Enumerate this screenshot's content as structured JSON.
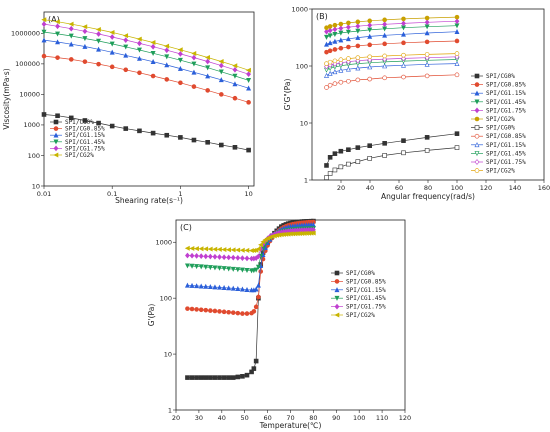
{
  "chart_data": [
    {
      "type": "scatter",
      "panel_label": "(A)",
      "xlabel": "Shearing rate(s⁻¹)",
      "ylabel": "Viscosity(mPa·s)",
      "xscale": "log",
      "yscale": "log",
      "xlim": [
        0.01,
        12
      ],
      "ylim": [
        10,
        5000000
      ],
      "xticks": [
        "0.01",
        "0.1",
        "1",
        "10"
      ],
      "yticks": [
        "10",
        "100",
        "1000",
        "10000",
        "100000",
        "1000000"
      ],
      "legend_loc": "bottom-left",
      "x": [
        0.01,
        0.0158,
        0.0251,
        0.0398,
        0.0631,
        0.1,
        0.158,
        0.251,
        0.398,
        0.631,
        1,
        1.58,
        2.51,
        3.98,
        6.31,
        10
      ],
      "series": [
        {
          "name": "SPI/CG0%",
          "marker": "square",
          "color": "#333333",
          "values": [
            2200,
            2000,
            1700,
            1400,
            1150,
            920,
            760,
            640,
            540,
            460,
            390,
            320,
            270,
            220,
            185,
            150
          ]
        },
        {
          "name": "SPI/CG0.85%",
          "marker": "circle",
          "color": "#e04a2f",
          "values": [
            180000,
            160000,
            140000,
            118000,
            98000,
            80000,
            64000,
            51000,
            40000,
            31000,
            24000,
            18000,
            13500,
            10000,
            7500,
            5500
          ]
        },
        {
          "name": "SPI/CG1.15%",
          "marker": "triangle-up",
          "color": "#2b5fd9",
          "values": [
            600000,
            520000,
            440000,
            370000,
            300000,
            240000,
            190000,
            150000,
            118000,
            92000,
            70000,
            53000,
            40000,
            30000,
            22000,
            16000
          ]
        },
        {
          "name": "SPI/CG1.45%",
          "marker": "triangle-down",
          "color": "#1f9e5a",
          "values": [
            1100000,
            960000,
            820000,
            680000,
            560000,
            450000,
            360000,
            285000,
            222000,
            172000,
            132000,
            100000,
            75000,
            55000,
            40000,
            29000
          ]
        },
        {
          "name": "SPI/CG1.75%",
          "marker": "diamond",
          "color": "#c040d0",
          "values": [
            2000000,
            1700000,
            1420000,
            1170000,
            950000,
            760000,
            600000,
            470000,
            365000,
            280000,
            212000,
            160000,
            120000,
            88000,
            64000,
            46000
          ]
        },
        {
          "name": "SPI/CG2%",
          "marker": "triangle-left",
          "color": "#c8b400",
          "values": [
            2800000,
            2400000,
            2000000,
            1650000,
            1340000,
            1070000,
            840000,
            650000,
            500000,
            382000,
            290000,
            218000,
            162000,
            120000,
            87000,
            62000
          ]
        }
      ]
    },
    {
      "type": "scatter",
      "panel_label": "(B)",
      "xlabel": "Angular frequency(rad/s)",
      "ylabel": "G'G\"(Pa)",
      "xscale": "linear",
      "yscale": "log",
      "xlim": [
        0,
        160
      ],
      "ylim": [
        1,
        1000
      ],
      "xticks": [
        "20",
        "40",
        "60",
        "80",
        "100",
        "120",
        "140",
        "160"
      ],
      "yticks": [
        "1",
        "10",
        "100",
        "1000"
      ],
      "legend_loc": "right",
      "x": [
        10,
        12.5,
        15.8,
        19.9,
        25.1,
        31.6,
        39.8,
        50.1,
        63.1,
        79.4,
        100
      ],
      "series": [
        {
          "name": "SPI/CG0%",
          "marker": "square",
          "filled": true,
          "color": "#333333",
          "values": [
            1.8,
            2.5,
            2.9,
            3.2,
            3.4,
            3.7,
            4.0,
            4.4,
            4.9,
            5.6,
            6.5
          ]
        },
        {
          "name": "SPI/CG0.85%",
          "marker": "circle",
          "filled": true,
          "color": "#e04a2f",
          "values": [
            175,
            185,
            195,
            205,
            215,
            225,
            235,
            245,
            255,
            265,
            275
          ]
        },
        {
          "name": "SPI/CG1.15%",
          "marker": "triangle-up",
          "filled": true,
          "color": "#2b5fd9",
          "values": [
            240,
            255,
            270,
            285,
            300,
            315,
            330,
            345,
            360,
            380,
            400
          ]
        },
        {
          "name": "SPI/CG1.45%",
          "marker": "triangle-down",
          "filled": true,
          "color": "#1f9e5a",
          "values": [
            320,
            340,
            360,
            380,
            395,
            410,
            430,
            450,
            470,
            490,
            510
          ]
        },
        {
          "name": "SPI/CG1.75%",
          "marker": "diamond",
          "filled": true,
          "color": "#c040d0",
          "values": [
            400,
            420,
            440,
            460,
            480,
            500,
            520,
            540,
            560,
            585,
            610
          ]
        },
        {
          "name": "SPI/CG2%",
          "marker": "circle",
          "filled": true,
          "color": "#c8a000",
          "values": [
            470,
            495,
            520,
            545,
            570,
            595,
            620,
            645,
            670,
            695,
            720
          ]
        },
        {
          "name": "SPI/CG0%",
          "marker": "square",
          "filled": false,
          "color": "#333333",
          "values": [
            1.1,
            1.3,
            1.5,
            1.7,
            1.9,
            2.1,
            2.4,
            2.7,
            3.0,
            3.3,
            3.7
          ]
        },
        {
          "name": "SPI/CG0.85%",
          "marker": "circle",
          "filled": false,
          "color": "#e04a2f",
          "values": [
            42,
            46,
            49,
            52,
            54,
            57,
            59,
            62,
            64,
            67,
            70
          ]
        },
        {
          "name": "SPI/CG1.15%",
          "marker": "triangle-up",
          "filled": false,
          "color": "#2b5fd9",
          "values": [
            68,
            74,
            79,
            84,
            88,
            92,
            96,
            100,
            103,
            107,
            110
          ]
        },
        {
          "name": "SPI/CG1.45%",
          "marker": "triangle-down",
          "filled": false,
          "color": "#1f9e5a",
          "values": [
            85,
            91,
            96,
            101,
            106,
            110,
            114,
            118,
            122,
            126,
            130
          ]
        },
        {
          "name": "SPI/CG1.75%",
          "marker": "diamond",
          "filled": false,
          "color": "#c040d0",
          "values": [
            98,
            104,
            109,
            114,
            119,
            124,
            128,
            132,
            136,
            140,
            145
          ]
        },
        {
          "name": "SPI/CG2%",
          "marker": "circle",
          "filled": false,
          "color": "#e0a000",
          "values": [
            110,
            117,
            123,
            129,
            135,
            140,
            145,
            150,
            155,
            160,
            165
          ]
        }
      ]
    },
    {
      "type": "line",
      "panel_label": "(C)",
      "xlabel": "Temperature(℃)",
      "ylabel": "G'(Pa)",
      "xscale": "linear",
      "yscale": "log",
      "xlim": [
        20,
        120
      ],
      "ylim": [
        1,
        2500
      ],
      "xticks": [
        "20",
        "30",
        "40",
        "50",
        "60",
        "70",
        "80",
        "90",
        "100",
        "110",
        "120"
      ],
      "yticks": [
        "1",
        "10",
        "100",
        "1000"
      ],
      "legend_loc": "right",
      "x": [
        25,
        27,
        29,
        31,
        33,
        35,
        37,
        39,
        41,
        43,
        45,
        47,
        49,
        51,
        53,
        54,
        55,
        56,
        57,
        58,
        59,
        60,
        61,
        62,
        63,
        64,
        65,
        66,
        67,
        68,
        69,
        70,
        71,
        72,
        73,
        74,
        75,
        76,
        77,
        78,
        79,
        80
      ],
      "series": [
        {
          "name": "SPI/CG0%",
          "marker": "square",
          "color": "#333333",
          "values": [
            3.8,
            3.8,
            3.8,
            3.8,
            3.8,
            3.8,
            3.8,
            3.8,
            3.8,
            3.8,
            3.8,
            3.9,
            4.0,
            4.2,
            4.8,
            5.5,
            7.5,
            100,
            400,
            650,
            850,
            1000,
            1150,
            1300,
            1450,
            1600,
            1750,
            1900,
            2000,
            2080,
            2150,
            2200,
            2250,
            2280,
            2300,
            2320,
            2340,
            2350,
            2360,
            2370,
            2380,
            2390
          ]
        },
        {
          "name": "SPI/CG0.85%",
          "marker": "circle",
          "color": "#e04a2f",
          "values": [
            65,
            64,
            63,
            62,
            61,
            60,
            59,
            58,
            57,
            56,
            55,
            54,
            53,
            53,
            54,
            58,
            70,
            105,
            300,
            500,
            700,
            880,
            1050,
            1200,
            1350,
            1500,
            1630,
            1750,
            1850,
            1930,
            2000,
            2050,
            2100,
            2140,
            2170,
            2200,
            2220,
            2240,
            2260,
            2280,
            2290,
            2300
          ]
        },
        {
          "name": "SPI/CG1.15%",
          "marker": "triangle-up",
          "color": "#2b5fd9",
          "values": [
            170,
            168,
            166,
            164,
            162,
            160,
            158,
            156,
            154,
            152,
            150,
            148,
            145,
            142,
            140,
            140,
            145,
            170,
            380,
            600,
            800,
            980,
            1130,
            1270,
            1400,
            1520,
            1620,
            1700,
            1770,
            1830,
            1870,
            1910,
            1940,
            1960,
            1980,
            2000,
            2010,
            2020,
            2030,
            2040,
            2050,
            2060
          ]
        },
        {
          "name": "SPI/CG1.45%",
          "marker": "triangle-down",
          "color": "#1f9e5a",
          "values": [
            380,
            375,
            370,
            365,
            360,
            355,
            350,
            345,
            340,
            335,
            330,
            325,
            320,
            315,
            310,
            312,
            320,
            360,
            560,
            760,
            930,
            1070,
            1180,
            1280,
            1360,
            1430,
            1490,
            1540,
            1580,
            1610,
            1640,
            1660,
            1680,
            1700,
            1710,
            1720,
            1730,
            1740,
            1745,
            1750,
            1755,
            1760
          ]
        },
        {
          "name": "SPI/CG1.75%",
          "marker": "diamond",
          "color": "#c040d0",
          "values": [
            580,
            575,
            570,
            565,
            560,
            555,
            550,
            545,
            540,
            535,
            530,
            525,
            520,
            515,
            510,
            512,
            520,
            560,
            750,
            920,
            1060,
            1170,
            1260,
            1330,
            1390,
            1440,
            1480,
            1510,
            1540,
            1560,
            1580,
            1600,
            1610,
            1620,
            1630,
            1640,
            1645,
            1650,
            1655,
            1660,
            1665,
            1670
          ]
        },
        {
          "name": "SPI/CG2%",
          "marker": "triangle-left",
          "color": "#c8b400",
          "values": [
            780,
            775,
            770,
            765,
            760,
            755,
            750,
            745,
            740,
            735,
            730,
            725,
            720,
            715,
            710,
            712,
            720,
            760,
            900,
            1020,
            1110,
            1180,
            1230,
            1270,
            1300,
            1330,
            1350,
            1370,
            1380,
            1390,
            1400,
            1410,
            1415,
            1420,
            1425,
            1430,
            1435,
            1440,
            1445,
            1450,
            1455,
            1460
          ]
        }
      ]
    }
  ]
}
